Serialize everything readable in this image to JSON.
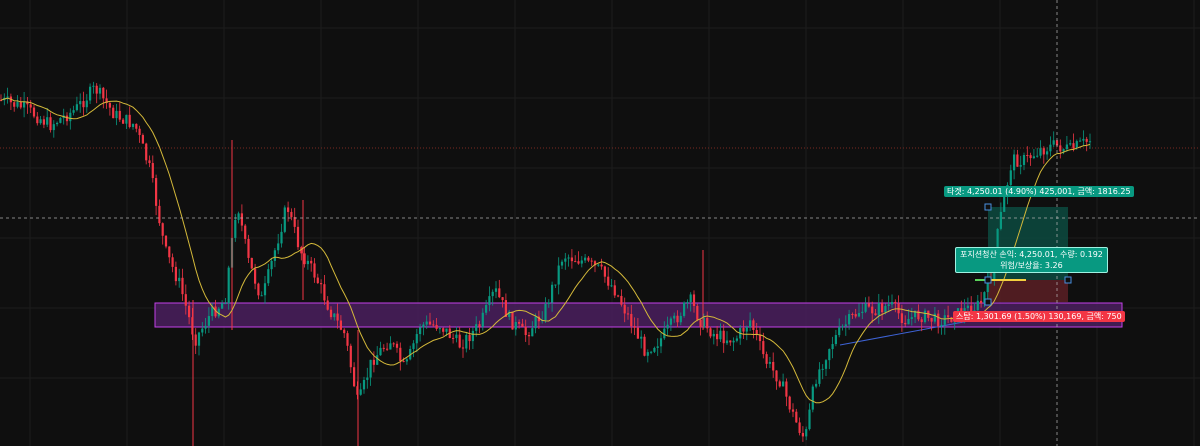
{
  "colors": {
    "background": "#0f0f0f",
    "grid": "#1c1c1c",
    "up": "#089981",
    "down": "#f23645",
    "ma": "#d4b93a",
    "zone_fill": "#4a1f5e",
    "zone_border": "#c341e8",
    "target_fill": "#0c4a3f",
    "stop_fill": "#5a1e24",
    "trendline": "#3e63d6",
    "entry_line": "#f4d03f",
    "entry_tick": "#5ad25a",
    "crosshair": "#b8b8b8",
    "price_line": "#c0392b"
  },
  "chart_data": {
    "type": "candlestick",
    "grid": true,
    "indicators": [
      "moving-average"
    ],
    "drawings": [
      "horizontal-zone",
      "long-position-tool",
      "trendline"
    ],
    "position_tool": {
      "target_label": "타겟: 4,250.01 (4.90%) 425,001, 금액: 1816.25",
      "stop_label": "스탑: 1,301.69 (1.50%) 130,169, 금액: 750",
      "position_label_line1": "포지션청산 손익: 4,250.01, 수량: 0.192",
      "position_label_line2": "위험/보상율: 3.26"
    }
  }
}
